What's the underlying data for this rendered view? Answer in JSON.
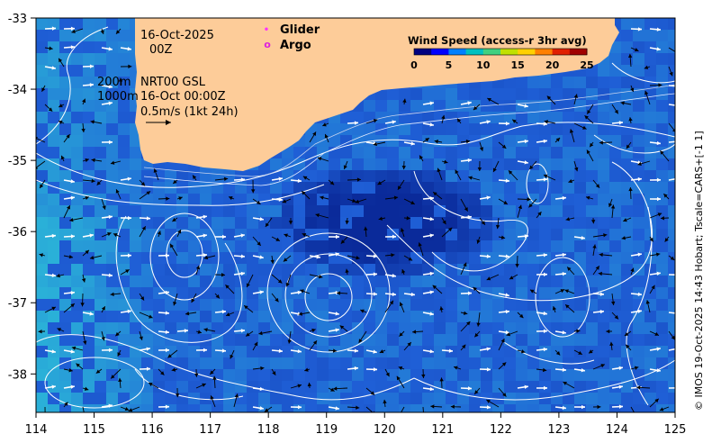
{
  "map": {
    "x_ticks": [
      "114",
      "115",
      "116",
      "117",
      "118",
      "119",
      "120",
      "121",
      "122",
      "123",
      "124",
      "125"
    ],
    "y_ticks": [
      "-33",
      "-34",
      "-35",
      "-36",
      "-37",
      "-38"
    ]
  },
  "annotations": {
    "date": "16-Oct-2025",
    "hour": "00Z",
    "depth_label_1": "200m",
    "depth_label_2": "1000m",
    "product": "NRT00 GSL",
    "timestamp": "16-Oct 00:00Z",
    "scale_label": "0.5m/s (1kt 24h)"
  },
  "key": {
    "glider_label": "Glider",
    "glider_symbol": "•",
    "argo_label": "Argo",
    "argo_symbol": "o",
    "glider_color": "#ff33ff",
    "argo_color": "#dd22dd"
  },
  "legend": {
    "title": "Wind Speed (access-r 3hr avg)",
    "ticks": [
      "0",
      "5",
      "10",
      "15",
      "20",
      "25"
    ],
    "colors": [
      "#000080",
      "#0000ff",
      "#0080ff",
      "#00c0c0",
      "#40d080",
      "#c0e000",
      "#ffd000",
      "#ff8000",
      "#e02000",
      "#a00000"
    ]
  },
  "side_credit": "© IMOS 19-Oct-2025 14:43 Hobart; Tscale=CARS+[-1 1]",
  "colors": {
    "land": "#fdcc99",
    "sea_deep": "#0a2a9a",
    "sea_mid": "#1f5fd6",
    "sea_light": "#2ab0d8",
    "contour": "#ffffff",
    "arrow_black": "#000000",
    "arrow_white": "#ffffff"
  }
}
